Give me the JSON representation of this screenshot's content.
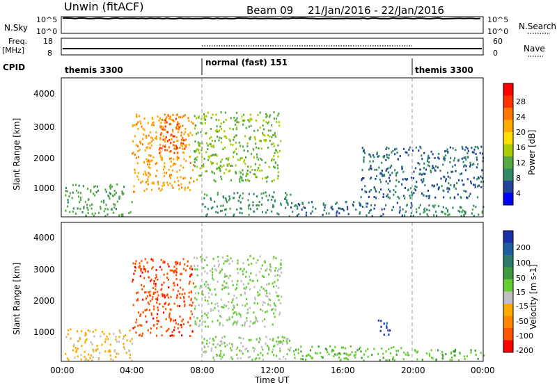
{
  "header": {
    "title": "Unwin (fitACF)",
    "beam": "Beam 09",
    "date_range": "21/Jan/2016 - 22/Jan/2016"
  },
  "top_panels": {
    "nsky_label": "N.Sky",
    "nsky_ticks": [
      "10^5",
      "10^0"
    ],
    "nsearch_label": "N.Search",
    "nsearch_ticks": [
      "10^5",
      "10^0"
    ],
    "freq_label_line1": "Freq.",
    "freq_label_line2": "[MHz]",
    "freq_ticks": [
      "18",
      "8"
    ],
    "nave_label": "Nave",
    "nave_ticks": [
      "60",
      "0"
    ],
    "cpid_label": "CPID",
    "cpid_segments": [
      {
        "label": "themis 3300",
        "start_hour": 0,
        "end_hour": 8
      },
      {
        "label": "normal (fast) 151",
        "start_hour": 8,
        "end_hour": 20
      },
      {
        "label": "themis 3300",
        "start_hour": 20,
        "end_hour": 24
      }
    ]
  },
  "power_colorbar": {
    "label": "Power [dB]",
    "ticks": [
      "28",
      "24",
      "20",
      "16",
      "12",
      "8",
      "4"
    ],
    "colors": [
      "#ff0000",
      "#ff3300",
      "#ff7700",
      "#ffaa00",
      "#ffdd00",
      "#aacc00",
      "#55aa44",
      "#338866",
      "#224499",
      "#0000ff"
    ]
  },
  "velocity_colorbar": {
    "label": "Velocity [m s-1]",
    "ticks": [
      "200",
      "100",
      "50",
      "15",
      "-15",
      "-50",
      "-100",
      "-200"
    ],
    "colors": [
      "#1a30a8",
      "#1f5fa0",
      "#2f7a6a",
      "#3f9a3f",
      "#66cc33",
      "#bfbfbf",
      "#ffaa00",
      "#ff8800",
      "#ff5500",
      "#ff0000"
    ]
  },
  "x_axis": {
    "label": "Time UT",
    "ticks": [
      "00:00",
      "04:00",
      "08:00",
      "12:00",
      "16:00",
      "20:00",
      "00:00"
    ]
  },
  "chart_data": [
    {
      "type": "heatmap",
      "title": "Power",
      "xlabel": "Time UT",
      "ylabel": "Slant Range [km]",
      "xlim": [
        0,
        24
      ],
      "ylim": [
        200,
        4500
      ],
      "yticks": [
        "4000",
        "3000",
        "2000",
        "1000"
      ],
      "colorbar_label": "Power [dB]",
      "clim": [
        0,
        30
      ],
      "regions": [
        {
          "t0": 0.2,
          "t1": 4.0,
          "r0": 250,
          "r1": 1250,
          "value": 10
        },
        {
          "t0": 4.0,
          "t1": 7.5,
          "r0": 1000,
          "r1": 3400,
          "value": 20
        },
        {
          "t0": 5.5,
          "t1": 7.0,
          "r0": 2200,
          "r1": 3400,
          "value": 24
        },
        {
          "t0": 7.5,
          "t1": 12.5,
          "r0": 1300,
          "r1": 3500,
          "value": 12
        },
        {
          "t0": 8.0,
          "t1": 13.0,
          "r0": 250,
          "r1": 1000,
          "value": 8
        },
        {
          "t0": 13.0,
          "t1": 20.0,
          "r0": 250,
          "r1": 700,
          "value": 6
        },
        {
          "t0": 17.0,
          "t1": 24.0,
          "r0": 800,
          "r1": 2400,
          "value": 6
        },
        {
          "t0": 20.0,
          "t1": 24.0,
          "r0": 250,
          "r1": 600,
          "value": 8
        }
      ]
    },
    {
      "type": "heatmap",
      "title": "Velocity",
      "xlabel": "Time UT",
      "ylabel": "Slant Range [km]",
      "xlim": [
        0,
        24
      ],
      "ylim": [
        200,
        4500
      ],
      "yticks": [
        "4000",
        "3000",
        "2000",
        "1000"
      ],
      "colorbar_label": "Velocity [m s-1]",
      "clim": [
        -250,
        250
      ],
      "regions": [
        {
          "t0": 0.2,
          "t1": 4.0,
          "r0": 250,
          "r1": 1250,
          "value": -60
        },
        {
          "t0": 4.0,
          "t1": 7.5,
          "r0": 1000,
          "r1": 3400,
          "value": -180
        },
        {
          "t0": 7.5,
          "t1": 12.5,
          "r0": 1300,
          "r1": 3500,
          "value": 0
        },
        {
          "t0": 8.0,
          "t1": 13.0,
          "r0": 250,
          "r1": 1000,
          "value": 5
        },
        {
          "t0": 13.0,
          "t1": 20.0,
          "r0": 250,
          "r1": 700,
          "value": 30
        },
        {
          "t0": 18.0,
          "t1": 18.7,
          "r0": 1000,
          "r1": 1500,
          "value": 210
        },
        {
          "t0": 20.0,
          "t1": 24.0,
          "r0": 250,
          "r1": 600,
          "value": 40
        }
      ]
    }
  ]
}
